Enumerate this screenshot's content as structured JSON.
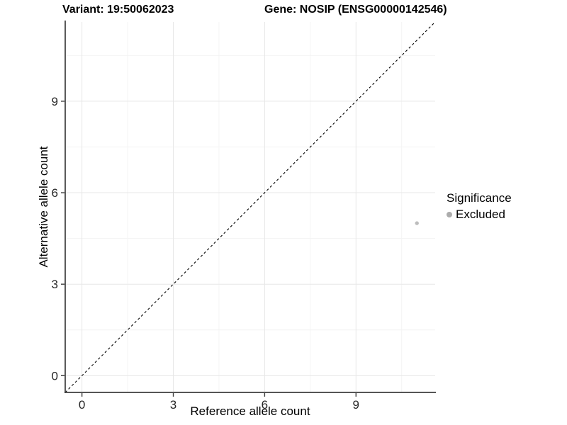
{
  "header": {
    "variant_title": "Variant: 19:50062023",
    "gene_title": "Gene: NOSIP (ENSG00000142546)"
  },
  "legend": {
    "title": "Significance",
    "entries": [
      {
        "label": "Excluded",
        "color": "#acacac"
      }
    ]
  },
  "chart_data": {
    "type": "scatter",
    "title": "Variant: 19:50062023  |  Gene: NOSIP (ENSG00000142546)",
    "xlabel": "Reference allele count",
    "ylabel": "Alternative allele count",
    "xticks": [
      0,
      3,
      6,
      9
    ],
    "yticks": [
      0,
      3,
      6,
      9
    ],
    "xminor": [
      1.5,
      4.5,
      7.5,
      10.5
    ],
    "yminor": [
      1.5,
      4.5,
      7.5,
      10.5
    ],
    "xlim": [
      -0.55,
      11.6
    ],
    "ylim": [
      -0.55,
      11.6
    ],
    "grid": true,
    "legend_position": "right",
    "series": [
      {
        "name": "Excluded",
        "color": "#bdbdbd",
        "points": [
          {
            "x": 11,
            "y": 5
          }
        ]
      }
    ],
    "identity_line": {
      "equation": "y = x",
      "style": "dashed",
      "color": "#000000"
    },
    "colors": {
      "axis": "#3d3d3d",
      "grid_major": "#e7e7e7",
      "grid_minor": "#f3f3f3",
      "tick_text": "#262626",
      "background": "#ffffff"
    }
  }
}
